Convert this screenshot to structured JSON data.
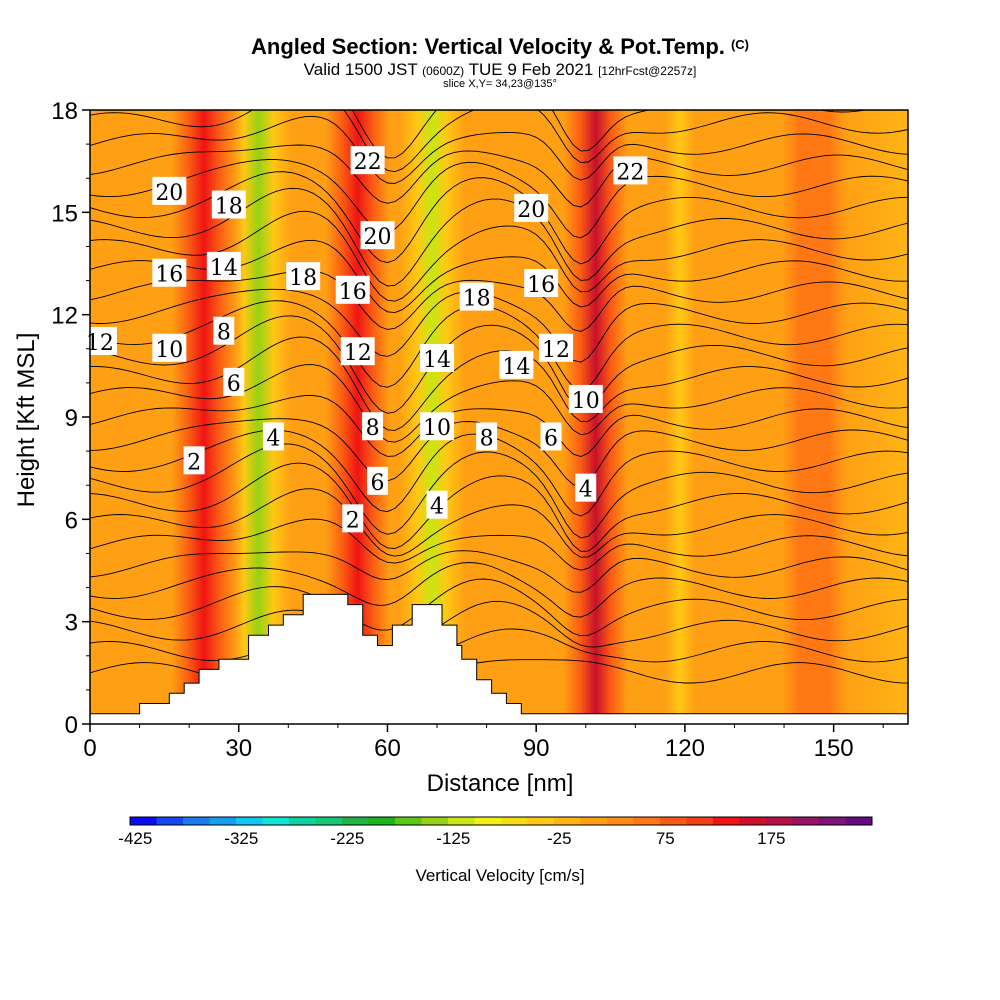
{
  "header": {
    "title": "Angled Section: Vertical Velocity & Pot.Temp.",
    "title_unit": "(C)",
    "valid_prefix": "Valid 1500 JST",
    "valid_utc": "(0600Z)",
    "valid_date": "TUE 9 Feb 2021",
    "forecast_info": "[12hrFcst@2257z]",
    "slice_info": "slice X,Y= 34,23@135°"
  },
  "chart_data": {
    "type": "heatmap",
    "xlabel": "Distance [nm]",
    "ylabel": "Height [Kft MSL]",
    "xlim": [
      0,
      165
    ],
    "ylim": [
      0,
      18
    ],
    "x_ticks": [
      0,
      30,
      60,
      90,
      120,
      150
    ],
    "y_ticks": [
      0,
      3,
      6,
      9,
      12,
      15,
      18
    ],
    "field": "Vertical Velocity [cm/s]",
    "velocity_bands": [
      {
        "x": 23,
        "value": 110
      },
      {
        "x": 34,
        "value": -160
      },
      {
        "x": 54,
        "value": 100
      },
      {
        "x": 69,
        "value": -150
      },
      {
        "x": 102,
        "value": 150
      },
      {
        "x": 119,
        "value": -60
      },
      {
        "x": 146,
        "value": 30
      }
    ],
    "terrain": [
      [
        0,
        0.3
      ],
      [
        10,
        0.3
      ],
      [
        10,
        0.6
      ],
      [
        16,
        0.6
      ],
      [
        16,
        0.9
      ],
      [
        19,
        0.9
      ],
      [
        19,
        1.2
      ],
      [
        22,
        1.2
      ],
      [
        22,
        1.6
      ],
      [
        26,
        1.6
      ],
      [
        26,
        1.9
      ],
      [
        32,
        1.9
      ],
      [
        32,
        2.6
      ],
      [
        36,
        2.6
      ],
      [
        36,
        2.9
      ],
      [
        39,
        2.9
      ],
      [
        39,
        3.2
      ],
      [
        43,
        3.2
      ],
      [
        43,
        3.8
      ],
      [
        52,
        3.8
      ],
      [
        52,
        3.5
      ],
      [
        55,
        3.5
      ],
      [
        55,
        2.6
      ],
      [
        58,
        2.6
      ],
      [
        58,
        2.3
      ],
      [
        61,
        2.3
      ],
      [
        61,
        2.9
      ],
      [
        65,
        2.9
      ],
      [
        65,
        3.5
      ],
      [
        71,
        3.5
      ],
      [
        71,
        2.9
      ],
      [
        74,
        2.9
      ],
      [
        74,
        2.3
      ],
      [
        75,
        2.3
      ],
      [
        75,
        1.9
      ],
      [
        78,
        1.9
      ],
      [
        78,
        1.3
      ],
      [
        81,
        1.3
      ],
      [
        81,
        0.9
      ],
      [
        84,
        0.9
      ],
      [
        84,
        0.6
      ],
      [
        87,
        0.6
      ],
      [
        87,
        0.3
      ],
      [
        165,
        0.3
      ]
    ],
    "colorbar": {
      "title": "Vertical Velocity [cm/s]",
      "tick_labels": [
        "-425",
        "-325",
        "-225",
        "-125",
        "-25",
        "75",
        "175"
      ],
      "colors": [
        "#0a0af5",
        "#1446f5",
        "#1e78f0",
        "#14a0f0",
        "#10c8f0",
        "#10e6d2",
        "#10d2a0",
        "#14c878",
        "#1eb446",
        "#1eb41e",
        "#5ac814",
        "#96d214",
        "#c8e614",
        "#f0f014",
        "#f5dc14",
        "#ffc814",
        "#ffb414",
        "#ffa014",
        "#ff8c14",
        "#ff7814",
        "#fa5a14",
        "#f53c14",
        "#f01414",
        "#d20f28",
        "#b40f46",
        "#961464",
        "#7d1478",
        "#640a82"
      ]
    },
    "potential_temperature_contours": {
      "labels": [
        {
          "text": "20",
          "x": 16,
          "y": 15.6
        },
        {
          "text": "18",
          "x": 28,
          "y": 15.2
        },
        {
          "text": "22",
          "x": 56,
          "y": 16.5
        },
        {
          "text": "22",
          "x": 109,
          "y": 16.2
        },
        {
          "text": "20",
          "x": 89,
          "y": 15.1
        },
        {
          "text": "20",
          "x": 58,
          "y": 14.3
        },
        {
          "text": "16",
          "x": 16,
          "y": 13.2
        },
        {
          "text": "14",
          "x": 27,
          "y": 13.4
        },
        {
          "text": "18",
          "x": 43,
          "y": 13.1
        },
        {
          "text": "16",
          "x": 53,
          "y": 12.7
        },
        {
          "text": "18",
          "x": 78,
          "y": 12.5
        },
        {
          "text": "16",
          "x": 91,
          "y": 12.9
        },
        {
          "text": "12",
          "x": 2,
          "y": 11.2
        },
        {
          "text": "10",
          "x": 16,
          "y": 11.0
        },
        {
          "text": "8",
          "x": 27,
          "y": 11.5
        },
        {
          "text": "12",
          "x": 54,
          "y": 10.9
        },
        {
          "text": "14",
          "x": 70,
          "y": 10.7
        },
        {
          "text": "14",
          "x": 86,
          "y": 10.5
        },
        {
          "text": "12",
          "x": 94,
          "y": 11.0
        },
        {
          "text": "6",
          "x": 29,
          "y": 10.0
        },
        {
          "text": "10",
          "x": 100,
          "y": 9.5
        },
        {
          "text": "8",
          "x": 57,
          "y": 8.7
        },
        {
          "text": "10",
          "x": 70,
          "y": 8.7
        },
        {
          "text": "4",
          "x": 37,
          "y": 8.4
        },
        {
          "text": "8",
          "x": 80,
          "y": 8.4
        },
        {
          "text": "6",
          "x": 93,
          "y": 8.4
        },
        {
          "text": "2",
          "x": 21,
          "y": 7.7
        },
        {
          "text": "6",
          "x": 58,
          "y": 7.1
        },
        {
          "text": "4",
          "x": 70,
          "y": 6.4
        },
        {
          "text": "4",
          "x": 100,
          "y": 6.9
        },
        {
          "text": "2",
          "x": 53,
          "y": 6.0
        }
      ]
    }
  }
}
